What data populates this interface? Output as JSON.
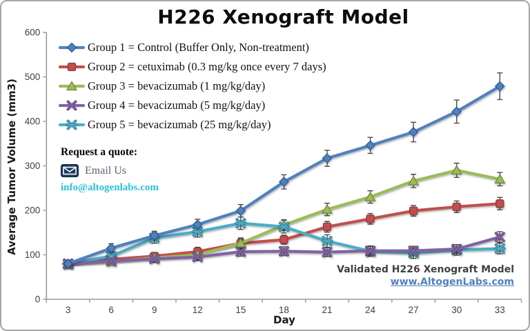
{
  "title": "H226 Xenograft Model",
  "quote": {
    "heading": "Request a quote:",
    "email_link_label": "Email Us",
    "email_address": "info@altogenlabs.com",
    "accent_color": "#2bc0d3",
    "icon_color": "#1d3a5f"
  },
  "footer": {
    "validated_text": "Validated H226 Xenograft Model",
    "website_link": "www.AltogenLabs.com",
    "link_color": "#4f81bd"
  },
  "chart_data": {
    "type": "line",
    "title": "H226 Xenograft Model",
    "xlabel": "Day",
    "ylabel": "Average Tumor Volume (mm3)",
    "x": [
      3,
      6,
      9,
      12,
      15,
      18,
      21,
      24,
      27,
      30,
      33
    ],
    "ylim": [
      0,
      600
    ],
    "yticks": [
      0,
      100,
      200,
      300,
      400,
      500,
      600
    ],
    "grid": false,
    "legend_position": "top-left-inside",
    "error_bars": true,
    "series": [
      {
        "name": "Group 1 = Control (Buffer Only, Non-treatment)",
        "color": "#4f81bd",
        "edge": "#2f5b8f",
        "marker": "diamond",
        "values": [
          80,
          115,
          143,
          168,
          199,
          264,
          317,
          346,
          376,
          422,
          479
        ],
        "errors": [
          8,
          10,
          10,
          12,
          14,
          16,
          18,
          18,
          22,
          26,
          30
        ]
      },
      {
        "name": "Group 2 = cetuximab (0.3 mg/kg once every 7 days)",
        "color": "#c0504d",
        "edge": "#8f3a38",
        "marker": "square",
        "values": [
          80,
          90,
          97,
          107,
          126,
          134,
          163,
          181,
          199,
          208,
          215
        ],
        "errors": [
          8,
          8,
          8,
          10,
          10,
          10,
          12,
          12,
          12,
          13,
          14
        ]
      },
      {
        "name": "Group 3 = bevacizumab (1 mg/kg/day)",
        "color": "#9bbb59",
        "edge": "#6f8a3d",
        "marker": "triangle",
        "values": [
          80,
          85,
          93,
          100,
          126,
          167,
          202,
          230,
          266,
          290,
          270
        ],
        "errors": [
          8,
          8,
          8,
          10,
          12,
          12,
          14,
          14,
          15,
          16,
          15
        ]
      },
      {
        "name": "Group 4 = bevacizumab (5 mg/kg/day)",
        "color": "#8064a2",
        "edge": "#5d4a78",
        "marker": "x",
        "values": [
          80,
          86,
          91,
          95,
          107,
          108,
          106,
          109,
          109,
          113,
          140
        ],
        "errors": [
          8,
          8,
          8,
          8,
          10,
          10,
          10,
          10,
          10,
          10,
          12
        ]
      },
      {
        "name": "Group 5 = bevacizumab (25 mg/kg/day)",
        "color": "#4bacc6",
        "edge": "#34798c",
        "marker": "star",
        "values": [
          80,
          97,
          138,
          152,
          171,
          163,
          131,
          108,
          104,
          111,
          114
        ],
        "errors": [
          8,
          10,
          12,
          12,
          14,
          14,
          14,
          12,
          12,
          12,
          12
        ]
      }
    ]
  }
}
